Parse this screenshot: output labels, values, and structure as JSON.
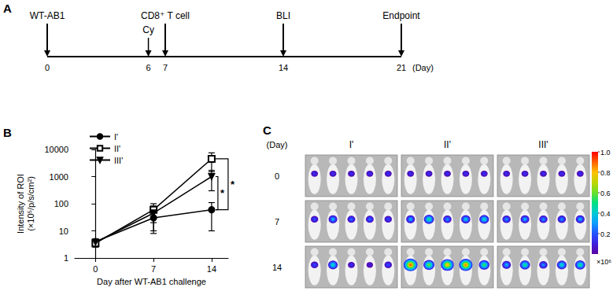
{
  "panel_labels": [
    "A",
    "B",
    "C"
  ],
  "timeline": {
    "events": [
      {
        "day": 0,
        "label": "WT-AB1"
      },
      {
        "day": 6,
        "label": "Cy"
      },
      {
        "day": 7,
        "label": "CD8⁺ T cell"
      },
      {
        "day": 14,
        "label": "BLI"
      },
      {
        "day": 21,
        "label": "Endpoint"
      }
    ],
    "unit": "(Day)"
  },
  "chart_data": {
    "type": "line",
    "xlabel": "Day after WT-AB1 challenge",
    "ylabel": "Intensity of ROI\n(×10⁵/p/s/cm²)",
    "log": "y",
    "grid": false,
    "legend": "upper left",
    "x": [
      0,
      7,
      14
    ],
    "xlim": [
      -2.5,
      16
    ],
    "xticks": [
      0,
      7,
      14
    ],
    "ylim": [
      1,
      10000
    ],
    "yticks": [
      1,
      10,
      100,
      1000,
      10000
    ],
    "series": [
      {
        "name": "I'",
        "color": "#000000",
        "marker": "circle",
        "values": [
          4,
          30,
          60
        ],
        "errors": [
          1,
          20,
          50
        ]
      },
      {
        "name": "II'",
        "color": "#000000",
        "marker": "open_square",
        "values": [
          3.5,
          60,
          4500
        ],
        "errors": [
          1,
          40,
          3000
        ]
      },
      {
        "name": "III'",
        "color": "#000000",
        "marker": "triangle_down",
        "values": [
          3.8,
          45,
          1000
        ],
        "errors": [
          1,
          37,
          700
        ]
      }
    ],
    "annotations": [
      {
        "text": "*",
        "between": [
          "III'",
          "I'"
        ]
      },
      {
        "text": "*",
        "between": [
          "II'",
          "I'"
        ]
      }
    ]
  },
  "imaging": {
    "row_title": "(Day)",
    "rows": [
      "0",
      "7",
      "14"
    ],
    "groups": [
      {
        "label": "I'",
        "signal": [
          [
            0.15,
            0.15,
            0.15,
            0.15,
            0.15
          ],
          [
            0.2,
            0.35,
            0.25,
            0.25,
            0.2
          ],
          [
            0.2,
            0.45,
            0.15,
            0.1,
            0.2
          ]
        ]
      },
      {
        "label": "II'",
        "signal": [
          [
            0.15,
            0.15,
            0.15,
            0.15,
            0.15
          ],
          [
            0.35,
            0.5,
            0.3,
            0.4,
            0.45
          ],
          [
            0.9,
            0.6,
            0.8,
            0.85,
            0.55
          ]
        ]
      },
      {
        "label": "III'",
        "signal": [
          [
            0.15,
            0.15,
            0.15,
            0.15,
            0.15
          ],
          [
            0.3,
            0.35,
            0.3,
            0.3,
            0.35
          ],
          [
            0.35,
            0.5,
            0.3,
            0.45,
            0.5
          ]
        ]
      }
    ],
    "colorbar": {
      "range": [
        0,
        1
      ],
      "ticks": [
        {
          "value": 1,
          "label": "1.0"
        },
        0.8,
        0.6,
        0.4,
        0.2
      ],
      "multiplier": "×10⁶"
    }
  }
}
